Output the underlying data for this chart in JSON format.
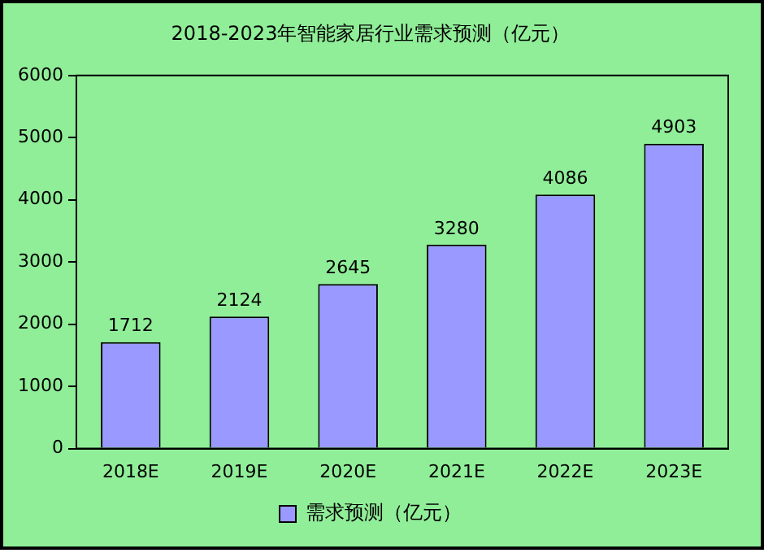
{
  "chart_data": {
    "type": "bar",
    "title": "2018-2023年智能家居行业需求预测（亿元）",
    "categories": [
      "2018E",
      "2019E",
      "2020E",
      "2021E",
      "2022E",
      "2023E"
    ],
    "series": [
      {
        "name": "需求预测（亿元）",
        "color": "#9999ff",
        "values": [
          1712,
          2124,
          2645,
          3280,
          4086,
          4903
        ]
      }
    ],
    "ylim": [
      0,
      6000
    ],
    "yticks": [
      0,
      1000,
      2000,
      3000,
      4000,
      5000,
      6000
    ],
    "grid": false,
    "legend": "bottom",
    "data_labels": true
  }
}
